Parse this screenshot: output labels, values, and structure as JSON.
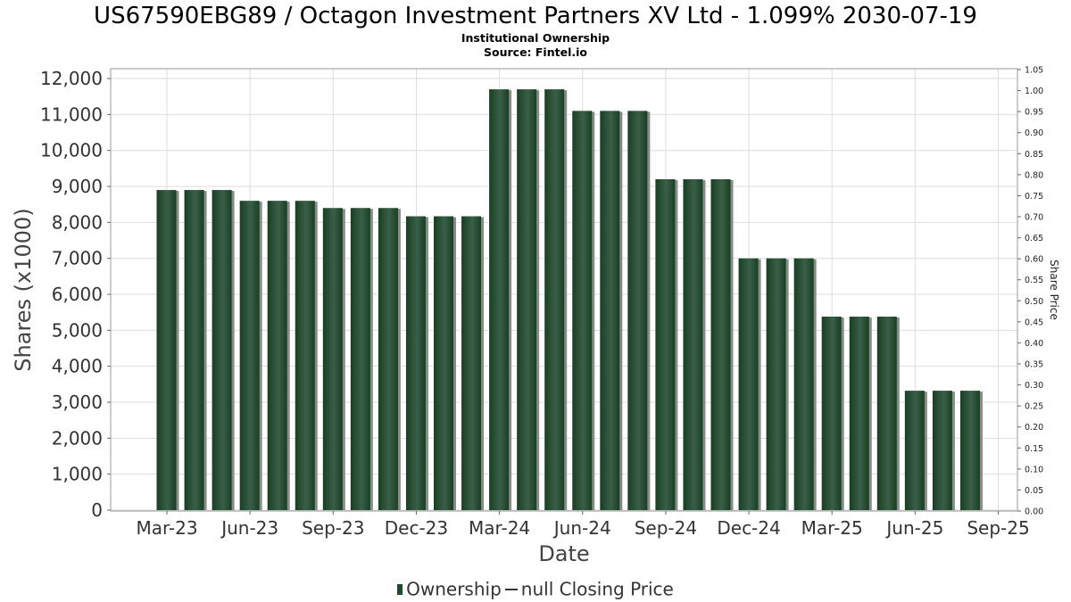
{
  "header": {
    "title": "US67590EBG89 / Octagon Investment Partners XV Ltd - 1.099% 2030-07-19",
    "subtitle": "Institutional Ownership",
    "source": "Source: Fintel.io"
  },
  "legend": {
    "ownership": "Ownership",
    "price": "null Closing Price"
  },
  "colors": {
    "bar_dark": "#183f22",
    "bar_light": "#3a5f48",
    "bar_shadow": "#8a8a8a",
    "grid": "#dddddd"
  },
  "chart_data": {
    "type": "bar",
    "xlabel": "Date",
    "ylabel": "Shares (x1000)",
    "y2label": "Share Price",
    "ylim": [
      0,
      12300
    ],
    "y2lim": [
      0,
      1.05
    ],
    "grid": true,
    "legend_position": "bottom",
    "yticks": [
      "0",
      "1,000",
      "2,000",
      "3,000",
      "4,000",
      "5,000",
      "6,000",
      "7,000",
      "8,000",
      "9,000",
      "10,000",
      "11,000",
      "12,000"
    ],
    "y2ticks": [
      "0.00",
      "0.05",
      "0.10",
      "0.15",
      "0.20",
      "0.25",
      "0.30",
      "0.35",
      "0.40",
      "0.45",
      "0.50",
      "0.55",
      "0.60",
      "0.65",
      "0.70",
      "0.75",
      "0.80",
      "0.85",
      "0.90",
      "0.95",
      "1.00",
      "1.05"
    ],
    "xticks": [
      "Mar-23",
      "Jun-23",
      "Sep-23",
      "Dec-23",
      "Mar-24",
      "Jun-24",
      "Sep-24",
      "Dec-24",
      "Mar-25",
      "Jun-25",
      "Sep-25"
    ],
    "series": [
      {
        "name": "Ownership",
        "values": [
          8900,
          8900,
          8900,
          8600,
          8600,
          8600,
          8400,
          8400,
          8400,
          8170,
          8170,
          8170,
          11700,
          11700,
          11700,
          11100,
          11100,
          11100,
          9200,
          9200,
          9200,
          7000,
          7000,
          7000,
          5380,
          5380,
          5380,
          3320,
          3320,
          3320
        ]
      }
    ]
  }
}
